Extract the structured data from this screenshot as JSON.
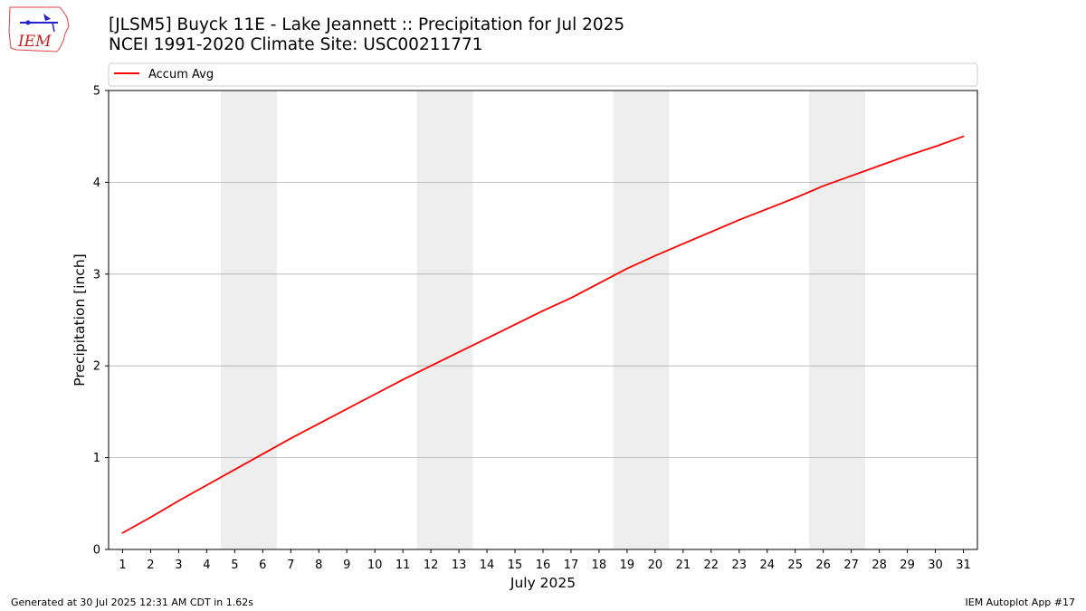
{
  "header": {
    "title_line1": "[JLSM5] Buyck 11E - Lake Jeannett :: Precipitation for Jul 2025",
    "title_line2": "NCEI 1991-2020 Climate Site: USC00211771"
  },
  "logo": {
    "text": "IEM",
    "icon": "iem-logo-icon"
  },
  "footer": {
    "left": "Generated at 30 Jul 2025 12:31 AM CDT in 1.62s",
    "right": "IEM Autoplot App #17"
  },
  "colors": {
    "series": "#ff0000",
    "weekend_band": "#eeeeee",
    "grid": "#b0b0b0"
  },
  "chart_data": {
    "type": "line",
    "title": "[JLSM5] Buyck 11E - Lake Jeannett :: Precipitation for Jul 2025",
    "subtitle": "NCEI 1991-2020 Climate Site: USC00211771",
    "xlabel": "July 2025",
    "ylabel": "Precipitation [inch]",
    "xlim": [
      0.5,
      31.5
    ],
    "ylim": [
      0,
      5
    ],
    "x_ticks": [
      1,
      2,
      3,
      4,
      5,
      6,
      7,
      8,
      9,
      10,
      11,
      12,
      13,
      14,
      15,
      16,
      17,
      18,
      19,
      20,
      21,
      22,
      23,
      24,
      25,
      26,
      27,
      28,
      29,
      30,
      31
    ],
    "y_ticks": [
      0,
      1,
      2,
      3,
      4,
      5
    ],
    "grid": "horizontal",
    "legend": "top",
    "weekend_bands": [
      [
        4.5,
        6.5
      ],
      [
        11.5,
        13.5
      ],
      [
        18.5,
        20.5
      ],
      [
        25.5,
        27.5
      ]
    ],
    "series": [
      {
        "name": "Accum Avg",
        "x": [
          1,
          2,
          3,
          4,
          5,
          6,
          7,
          8,
          9,
          10,
          11,
          12,
          13,
          14,
          15,
          16,
          17,
          18,
          19,
          20,
          21,
          22,
          23,
          24,
          25,
          26,
          27,
          28,
          29,
          30,
          31
        ],
        "values": [
          0.18,
          0.35,
          0.53,
          0.7,
          0.87,
          1.04,
          1.21,
          1.37,
          1.53,
          1.69,
          1.85,
          2.0,
          2.15,
          2.3,
          2.45,
          2.6,
          2.74,
          2.9,
          3.06,
          3.2,
          3.33,
          3.46,
          3.59,
          3.71,
          3.83,
          3.96,
          4.07,
          4.18,
          4.29,
          4.39,
          4.5
        ]
      }
    ]
  }
}
